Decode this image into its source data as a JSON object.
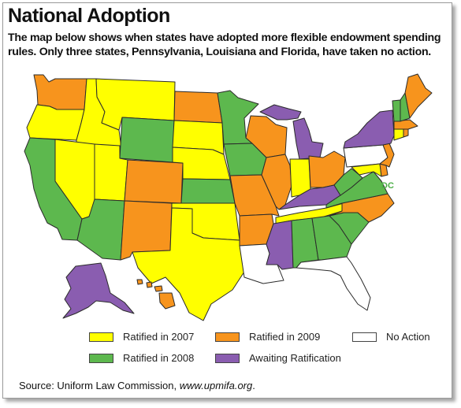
{
  "title": "National Adoption",
  "subtitle": "The map below shows when states have adopted more flexible endowment spending rules. Only three states, Pennsylvania, Louisiana and Florida, have taken no action.",
  "dc_label": "DC",
  "source": {
    "prefix": "Source: Uniform Law Commission,",
    "site": "www.upmifa.org",
    "suffix": "."
  },
  "colors": {
    "ratified_2007": "#ffff00",
    "ratified_2008": "#5db84e",
    "ratified_2009": "#f7941d",
    "awaiting": "#8a5db0",
    "no_action": "#ffffff",
    "dc_label": "#4caf47"
  },
  "legend": [
    {
      "key": "ratified_2007",
      "label": "Ratified in 2007"
    },
    {
      "key": "ratified_2009",
      "label": "Ratified in 2009"
    },
    {
      "key": "no_action",
      "label": "No Action"
    },
    {
      "key": "ratified_2008",
      "label": "Ratified in 2008"
    },
    {
      "key": "awaiting",
      "label": "Awaiting Ratification"
    }
  ],
  "states": [
    {
      "id": "washington",
      "status": "ratified_2009"
    },
    {
      "id": "oregon",
      "status": "ratified_2007"
    },
    {
      "id": "california",
      "status": "ratified_2008"
    },
    {
      "id": "idaho",
      "status": "ratified_2007"
    },
    {
      "id": "nevada",
      "status": "ratified_2007"
    },
    {
      "id": "montana",
      "status": "ratified_2007"
    },
    {
      "id": "wyoming",
      "status": "ratified_2008"
    },
    {
      "id": "utah",
      "status": "ratified_2007"
    },
    {
      "id": "arizona",
      "status": "ratified_2008"
    },
    {
      "id": "colorado",
      "status": "ratified_2009"
    },
    {
      "id": "new-mexico",
      "status": "ratified_2009"
    },
    {
      "id": "north-dakota",
      "status": "ratified_2009"
    },
    {
      "id": "south-dakota",
      "status": "ratified_2007"
    },
    {
      "id": "nebraska",
      "status": "ratified_2007"
    },
    {
      "id": "kansas",
      "status": "ratified_2008"
    },
    {
      "id": "oklahoma",
      "status": "ratified_2007"
    },
    {
      "id": "texas",
      "status": "ratified_2007"
    },
    {
      "id": "minnesota",
      "status": "ratified_2008"
    },
    {
      "id": "iowa",
      "status": "ratified_2008"
    },
    {
      "id": "missouri",
      "status": "ratified_2009"
    },
    {
      "id": "arkansas",
      "status": "ratified_2009"
    },
    {
      "id": "louisiana",
      "status": "no_action"
    },
    {
      "id": "wisconsin",
      "status": "ratified_2009"
    },
    {
      "id": "michigan-up",
      "status": "awaiting"
    },
    {
      "id": "michigan",
      "status": "awaiting"
    },
    {
      "id": "illinois",
      "status": "ratified_2009"
    },
    {
      "id": "indiana",
      "status": "ratified_2007"
    },
    {
      "id": "ohio",
      "status": "ratified_2009"
    },
    {
      "id": "kentucky",
      "status": "awaiting"
    },
    {
      "id": "tennessee",
      "status": "ratified_2007"
    },
    {
      "id": "mississippi",
      "status": "awaiting"
    },
    {
      "id": "alabama",
      "status": "ratified_2008"
    },
    {
      "id": "georgia",
      "status": "ratified_2008"
    },
    {
      "id": "florida",
      "status": "no_action"
    },
    {
      "id": "south-carolina",
      "status": "ratified_2008"
    },
    {
      "id": "north-carolina",
      "status": "ratified_2009"
    },
    {
      "id": "virginia",
      "status": "ratified_2008"
    },
    {
      "id": "west-virginia",
      "status": "ratified_2008"
    },
    {
      "id": "maryland",
      "status": "ratified_2007"
    },
    {
      "id": "delaware",
      "status": "ratified_2009"
    },
    {
      "id": "pennsylvania",
      "status": "no_action"
    },
    {
      "id": "new-jersey",
      "status": "ratified_2009"
    },
    {
      "id": "new-york",
      "status": "awaiting"
    },
    {
      "id": "connecticut",
      "status": "ratified_2007"
    },
    {
      "id": "rhode-island",
      "status": "ratified_2009"
    },
    {
      "id": "massachusetts",
      "status": "ratified_2009"
    },
    {
      "id": "vermont",
      "status": "ratified_2008"
    },
    {
      "id": "new-hampshire",
      "status": "ratified_2008"
    },
    {
      "id": "maine",
      "status": "ratified_2009"
    },
    {
      "id": "alaska",
      "status": "awaiting"
    },
    {
      "id": "hawaii",
      "status": "ratified_2009"
    }
  ]
}
